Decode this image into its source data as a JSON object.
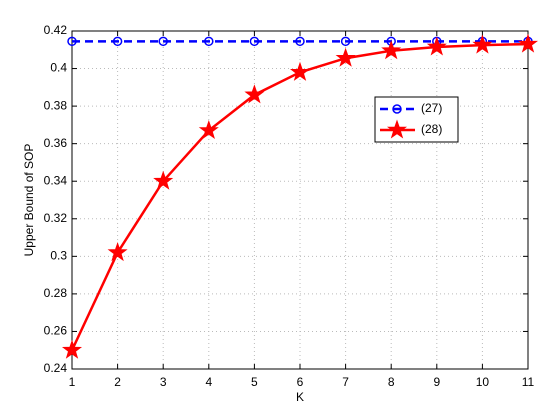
{
  "chart_data": {
    "type": "line",
    "x_label": "K",
    "y_label": "Upper Bound of SOP",
    "x": [
      1,
      2,
      3,
      4,
      5,
      6,
      7,
      8,
      9,
      10,
      11
    ],
    "series": [
      {
        "name": "(27)",
        "color": "#0000ff",
        "linestyle": "dashed",
        "marker": "circle",
        "values": [
          0.4145,
          0.4145,
          0.4145,
          0.4145,
          0.4145,
          0.4145,
          0.4145,
          0.4145,
          0.4145,
          0.4145,
          0.4145
        ]
      },
      {
        "name": "(28)",
        "color": "#ff0000",
        "linestyle": "solid",
        "marker": "star",
        "values": [
          0.25,
          0.302,
          0.34,
          0.367,
          0.386,
          0.398,
          0.4055,
          0.4095,
          0.4115,
          0.4125,
          0.413
        ]
      }
    ],
    "xlim": [
      1,
      11
    ],
    "ylim": [
      0.24,
      0.42
    ],
    "xticks": [
      1,
      2,
      3,
      4,
      5,
      6,
      7,
      8,
      9,
      10,
      11
    ],
    "yticks": [
      0.24,
      0.26,
      0.28,
      0.3,
      0.32,
      0.34,
      0.36,
      0.38,
      0.4,
      0.42
    ],
    "grid": true,
    "legend": "east"
  }
}
